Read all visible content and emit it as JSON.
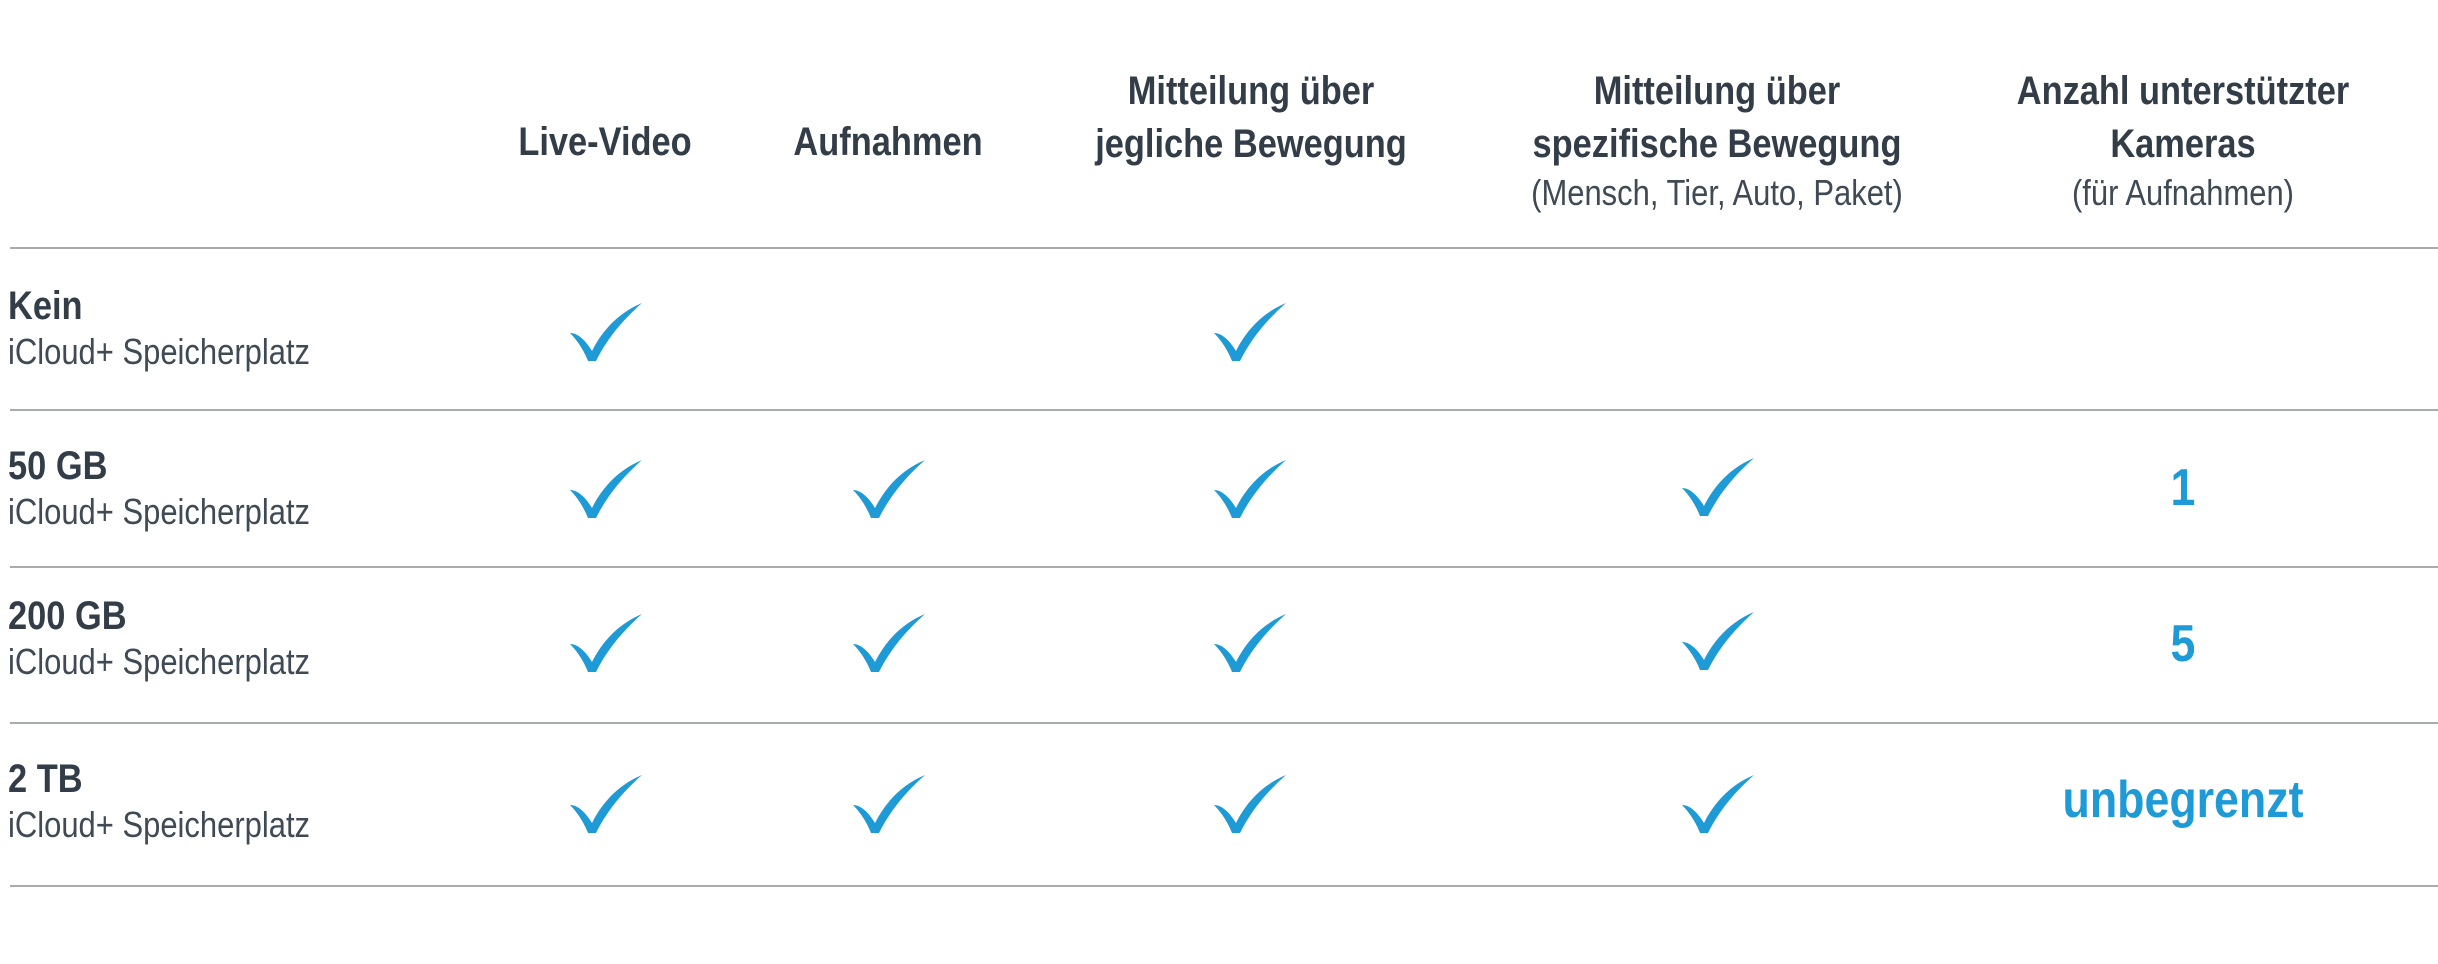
{
  "colors": {
    "text": "#333d47",
    "accent": "#1e9ad6",
    "divider": "#a9acae"
  },
  "headers": [
    {
      "key": "live_video",
      "line1": "Live-Video",
      "line2": "",
      "sub": ""
    },
    {
      "key": "recordings",
      "line1": "Aufnahmen",
      "line2": "",
      "sub": ""
    },
    {
      "key": "any_motion",
      "line1": "Mitteilung über",
      "line2": "jegliche Bewegung",
      "sub": ""
    },
    {
      "key": "specific_motion",
      "line1": "Mitteilung über",
      "line2": "spezifische Bewegung",
      "sub": "(Mensch, Tier, Auto, Paket)"
    },
    {
      "key": "cameras",
      "line1": "Anzahl unterstützter",
      "line2": "Kameras",
      "sub": "(für Aufnahmen)"
    }
  ],
  "rows": [
    {
      "title": "Kein",
      "subtitle": "iCloud+ Speicherplatz",
      "live_video": true,
      "recordings": false,
      "any_motion": true,
      "specific_motion": false,
      "cameras": ""
    },
    {
      "title": "50 GB",
      "subtitle": "iCloud+ Speicherplatz",
      "live_video": true,
      "recordings": true,
      "any_motion": true,
      "specific_motion": true,
      "cameras": "1"
    },
    {
      "title": "200 GB",
      "subtitle": "iCloud+ Speicherplatz",
      "live_video": true,
      "recordings": true,
      "any_motion": true,
      "specific_motion": true,
      "cameras": "5"
    },
    {
      "title": "2 TB",
      "subtitle": "iCloud+ Speicherplatz",
      "live_video": true,
      "recordings": true,
      "any_motion": true,
      "specific_motion": true,
      "cameras": "unbegrenzt"
    }
  ],
  "icons": {
    "check": "checkmark-icon"
  }
}
